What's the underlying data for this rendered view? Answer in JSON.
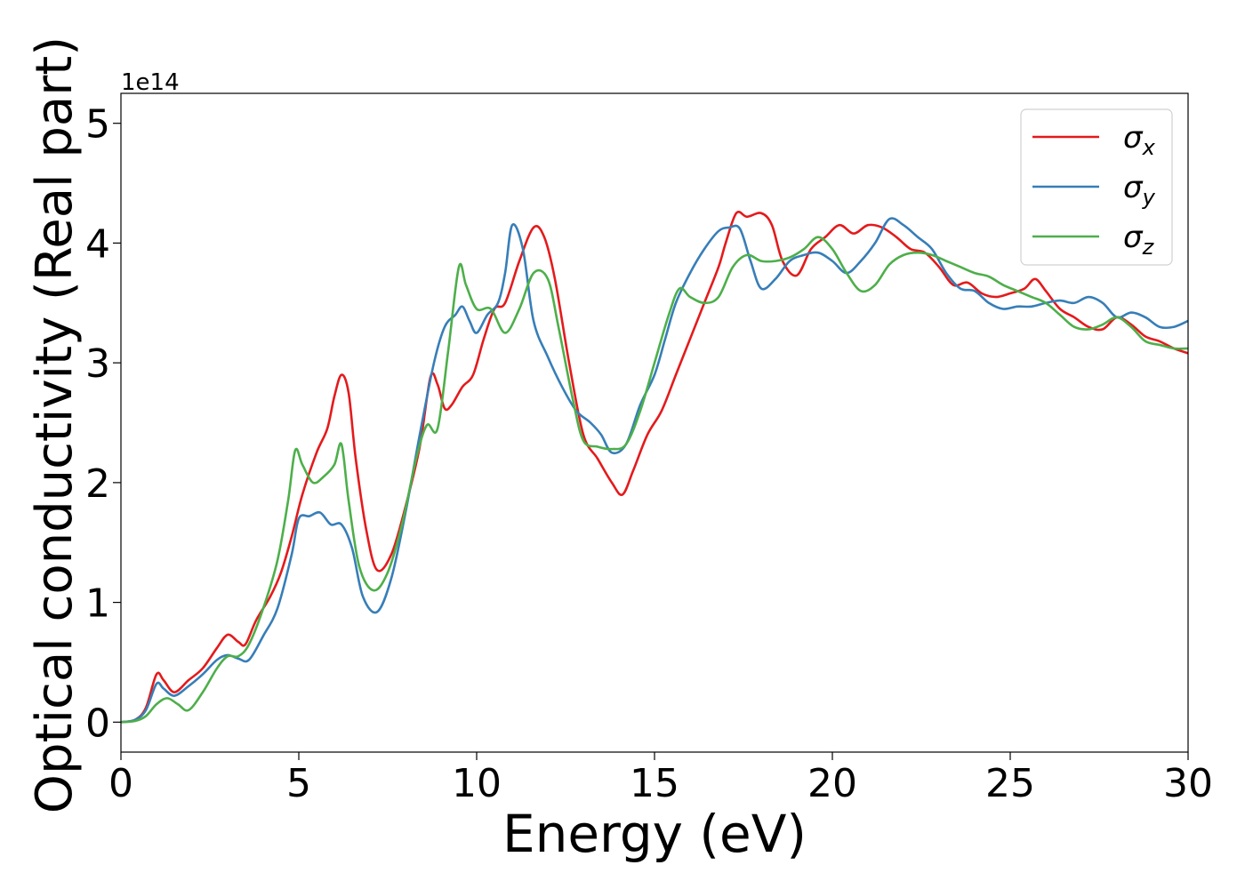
{
  "chart_data": {
    "type": "line",
    "xlabel": "Energy (eV)",
    "ylabel": "Optical conductivity (Real part)",
    "y_offset_label": "1e14",
    "xlim": [
      0,
      30
    ],
    "ylim": [
      -0.25,
      5.25
    ],
    "x_ticks": [
      0,
      5,
      10,
      15,
      20,
      25,
      30
    ],
    "x_tick_labels": [
      "0",
      "5",
      "10",
      "15",
      "20",
      "25",
      "30"
    ],
    "y_ticks": [
      0,
      1,
      2,
      3,
      4,
      5
    ],
    "y_tick_labels": [
      "0",
      "1",
      "2",
      "3",
      "4",
      "5"
    ],
    "grid": false,
    "legend_position": "top-right",
    "series": [
      {
        "name": "σx",
        "sigma": "σ",
        "sub": "x",
        "color": "#e41a1c",
        "points": [
          [
            0,
            0
          ],
          [
            0.4,
            0.02
          ],
          [
            0.7,
            0.12
          ],
          [
            1.0,
            0.4
          ],
          [
            1.2,
            0.35
          ],
          [
            1.5,
            0.25
          ],
          [
            1.9,
            0.35
          ],
          [
            2.3,
            0.45
          ],
          [
            2.7,
            0.62
          ],
          [
            3.0,
            0.73
          ],
          [
            3.3,
            0.67
          ],
          [
            3.5,
            0.65
          ],
          [
            3.8,
            0.85
          ],
          [
            4.2,
            1.05
          ],
          [
            4.5,
            1.25
          ],
          [
            4.8,
            1.55
          ],
          [
            5.1,
            1.9
          ],
          [
            5.5,
            2.25
          ],
          [
            5.8,
            2.45
          ],
          [
            6.0,
            2.72
          ],
          [
            6.2,
            2.9
          ],
          [
            6.4,
            2.75
          ],
          [
            6.6,
            2.2
          ],
          [
            6.9,
            1.6
          ],
          [
            7.2,
            1.27
          ],
          [
            7.6,
            1.4
          ],
          [
            8.0,
            1.8
          ],
          [
            8.4,
            2.3
          ],
          [
            8.7,
            2.88
          ],
          [
            8.9,
            2.82
          ],
          [
            9.1,
            2.62
          ],
          [
            9.3,
            2.65
          ],
          [
            9.6,
            2.8
          ],
          [
            9.9,
            2.9
          ],
          [
            10.2,
            3.2
          ],
          [
            10.5,
            3.45
          ],
          [
            10.8,
            3.5
          ],
          [
            11.2,
            3.85
          ],
          [
            11.6,
            4.13
          ],
          [
            11.9,
            4.05
          ],
          [
            12.2,
            3.7
          ],
          [
            12.6,
            3.0
          ],
          [
            13.0,
            2.4
          ],
          [
            13.4,
            2.2
          ],
          [
            13.8,
            2.0
          ],
          [
            14.1,
            1.9
          ],
          [
            14.4,
            2.1
          ],
          [
            14.8,
            2.4
          ],
          [
            15.2,
            2.6
          ],
          [
            15.6,
            2.9
          ],
          [
            16.0,
            3.2
          ],
          [
            16.4,
            3.5
          ],
          [
            16.8,
            3.8
          ],
          [
            17.0,
            4.0
          ],
          [
            17.3,
            4.25
          ],
          [
            17.6,
            4.22
          ],
          [
            18.0,
            4.25
          ],
          [
            18.3,
            4.15
          ],
          [
            18.6,
            3.85
          ],
          [
            19.0,
            3.73
          ],
          [
            19.4,
            3.95
          ],
          [
            19.8,
            4.05
          ],
          [
            20.2,
            4.15
          ],
          [
            20.6,
            4.08
          ],
          [
            21.0,
            4.15
          ],
          [
            21.4,
            4.13
          ],
          [
            21.8,
            4.05
          ],
          [
            22.2,
            3.95
          ],
          [
            22.6,
            3.92
          ],
          [
            23.0,
            3.8
          ],
          [
            23.4,
            3.65
          ],
          [
            23.8,
            3.67
          ],
          [
            24.2,
            3.58
          ],
          [
            24.6,
            3.55
          ],
          [
            25.0,
            3.58
          ],
          [
            25.4,
            3.62
          ],
          [
            25.7,
            3.7
          ],
          [
            26.0,
            3.6
          ],
          [
            26.4,
            3.45
          ],
          [
            26.8,
            3.38
          ],
          [
            27.2,
            3.3
          ],
          [
            27.6,
            3.28
          ],
          [
            28.0,
            3.38
          ],
          [
            28.4,
            3.32
          ],
          [
            28.8,
            3.22
          ],
          [
            29.2,
            3.18
          ],
          [
            29.6,
            3.12
          ],
          [
            30.0,
            3.08
          ]
        ]
      },
      {
        "name": "σy",
        "sigma": "σ",
        "sub": "y",
        "color": "#377eb8",
        "points": [
          [
            0,
            0
          ],
          [
            0.4,
            0.02
          ],
          [
            0.7,
            0.1
          ],
          [
            1.0,
            0.32
          ],
          [
            1.2,
            0.28
          ],
          [
            1.5,
            0.22
          ],
          [
            1.9,
            0.3
          ],
          [
            2.3,
            0.4
          ],
          [
            2.7,
            0.52
          ],
          [
            3.0,
            0.56
          ],
          [
            3.3,
            0.53
          ],
          [
            3.6,
            0.52
          ],
          [
            4.0,
            0.72
          ],
          [
            4.4,
            0.95
          ],
          [
            4.8,
            1.4
          ],
          [
            5.0,
            1.7
          ],
          [
            5.3,
            1.72
          ],
          [
            5.6,
            1.75
          ],
          [
            5.9,
            1.65
          ],
          [
            6.2,
            1.65
          ],
          [
            6.5,
            1.45
          ],
          [
            6.8,
            1.05
          ],
          [
            7.2,
            0.92
          ],
          [
            7.6,
            1.2
          ],
          [
            8.0,
            1.75
          ],
          [
            8.4,
            2.4
          ],
          [
            8.8,
            3.0
          ],
          [
            9.1,
            3.3
          ],
          [
            9.4,
            3.4
          ],
          [
            9.6,
            3.47
          ],
          [
            9.8,
            3.35
          ],
          [
            10.0,
            3.25
          ],
          [
            10.3,
            3.4
          ],
          [
            10.6,
            3.5
          ],
          [
            10.8,
            3.75
          ],
          [
            11.0,
            4.15
          ],
          [
            11.3,
            3.95
          ],
          [
            11.6,
            3.35
          ],
          [
            12.0,
            3.05
          ],
          [
            12.4,
            2.8
          ],
          [
            12.8,
            2.6
          ],
          [
            13.2,
            2.5
          ],
          [
            13.5,
            2.4
          ],
          [
            13.8,
            2.25
          ],
          [
            14.2,
            2.32
          ],
          [
            14.6,
            2.65
          ],
          [
            15.0,
            2.9
          ],
          [
            15.3,
            3.2
          ],
          [
            15.6,
            3.5
          ],
          [
            16.0,
            3.75
          ],
          [
            16.4,
            3.95
          ],
          [
            16.8,
            4.1
          ],
          [
            17.1,
            4.13
          ],
          [
            17.4,
            4.12
          ],
          [
            17.7,
            3.85
          ],
          [
            18.0,
            3.62
          ],
          [
            18.4,
            3.7
          ],
          [
            18.8,
            3.85
          ],
          [
            19.2,
            3.9
          ],
          [
            19.6,
            3.92
          ],
          [
            20.0,
            3.85
          ],
          [
            20.4,
            3.75
          ],
          [
            20.8,
            3.85
          ],
          [
            21.2,
            4.0
          ],
          [
            21.6,
            4.2
          ],
          [
            22.0,
            4.15
          ],
          [
            22.4,
            4.05
          ],
          [
            22.8,
            3.95
          ],
          [
            23.2,
            3.75
          ],
          [
            23.6,
            3.62
          ],
          [
            24.0,
            3.6
          ],
          [
            24.4,
            3.5
          ],
          [
            24.8,
            3.45
          ],
          [
            25.2,
            3.47
          ],
          [
            25.6,
            3.47
          ],
          [
            26.0,
            3.5
          ],
          [
            26.4,
            3.52
          ],
          [
            26.8,
            3.5
          ],
          [
            27.2,
            3.55
          ],
          [
            27.6,
            3.5
          ],
          [
            28.0,
            3.38
          ],
          [
            28.4,
            3.42
          ],
          [
            28.8,
            3.38
          ],
          [
            29.2,
            3.3
          ],
          [
            29.6,
            3.3
          ],
          [
            30.0,
            3.35
          ]
        ]
      },
      {
        "name": "σz",
        "sigma": "σ",
        "sub": "z",
        "color": "#4daf4a",
        "points": [
          [
            0,
            0
          ],
          [
            0.4,
            0.01
          ],
          [
            0.7,
            0.05
          ],
          [
            1.0,
            0.15
          ],
          [
            1.3,
            0.2
          ],
          [
            1.6,
            0.15
          ],
          [
            1.9,
            0.1
          ],
          [
            2.3,
            0.25
          ],
          [
            2.7,
            0.45
          ],
          [
            3.0,
            0.55
          ],
          [
            3.3,
            0.55
          ],
          [
            3.6,
            0.65
          ],
          [
            4.0,
            0.95
          ],
          [
            4.4,
            1.35
          ],
          [
            4.7,
            1.85
          ],
          [
            4.9,
            2.27
          ],
          [
            5.1,
            2.15
          ],
          [
            5.4,
            2.0
          ],
          [
            5.7,
            2.05
          ],
          [
            6.0,
            2.15
          ],
          [
            6.2,
            2.32
          ],
          [
            6.4,
            1.85
          ],
          [
            6.7,
            1.3
          ],
          [
            7.1,
            1.1
          ],
          [
            7.5,
            1.25
          ],
          [
            7.9,
            1.65
          ],
          [
            8.3,
            2.2
          ],
          [
            8.6,
            2.48
          ],
          [
            8.9,
            2.45
          ],
          [
            9.2,
            3.1
          ],
          [
            9.5,
            3.8
          ],
          [
            9.7,
            3.65
          ],
          [
            10.0,
            3.45
          ],
          [
            10.4,
            3.45
          ],
          [
            10.8,
            3.25
          ],
          [
            11.2,
            3.45
          ],
          [
            11.6,
            3.75
          ],
          [
            12.0,
            3.7
          ],
          [
            12.3,
            3.3
          ],
          [
            12.7,
            2.7
          ],
          [
            13.0,
            2.35
          ],
          [
            13.4,
            2.3
          ],
          [
            13.8,
            2.28
          ],
          [
            14.2,
            2.32
          ],
          [
            14.6,
            2.6
          ],
          [
            15.0,
            3.0
          ],
          [
            15.4,
            3.4
          ],
          [
            15.7,
            3.62
          ],
          [
            16.0,
            3.55
          ],
          [
            16.4,
            3.5
          ],
          [
            16.8,
            3.55
          ],
          [
            17.2,
            3.8
          ],
          [
            17.6,
            3.9
          ],
          [
            18.0,
            3.85
          ],
          [
            18.4,
            3.85
          ],
          [
            18.8,
            3.88
          ],
          [
            19.2,
            3.95
          ],
          [
            19.6,
            4.05
          ],
          [
            20.0,
            3.95
          ],
          [
            20.4,
            3.75
          ],
          [
            20.8,
            3.6
          ],
          [
            21.2,
            3.65
          ],
          [
            21.6,
            3.82
          ],
          [
            22.0,
            3.9
          ],
          [
            22.4,
            3.92
          ],
          [
            22.8,
            3.9
          ],
          [
            23.2,
            3.85
          ],
          [
            23.6,
            3.8
          ],
          [
            24.0,
            3.75
          ],
          [
            24.4,
            3.72
          ],
          [
            24.8,
            3.65
          ],
          [
            25.2,
            3.6
          ],
          [
            25.6,
            3.55
          ],
          [
            26.0,
            3.5
          ],
          [
            26.4,
            3.4
          ],
          [
            26.8,
            3.3
          ],
          [
            27.2,
            3.28
          ],
          [
            27.6,
            3.32
          ],
          [
            28.0,
            3.38
          ],
          [
            28.4,
            3.3
          ],
          [
            28.8,
            3.18
          ],
          [
            29.2,
            3.15
          ],
          [
            29.6,
            3.12
          ],
          [
            30.0,
            3.12
          ]
        ]
      }
    ]
  }
}
